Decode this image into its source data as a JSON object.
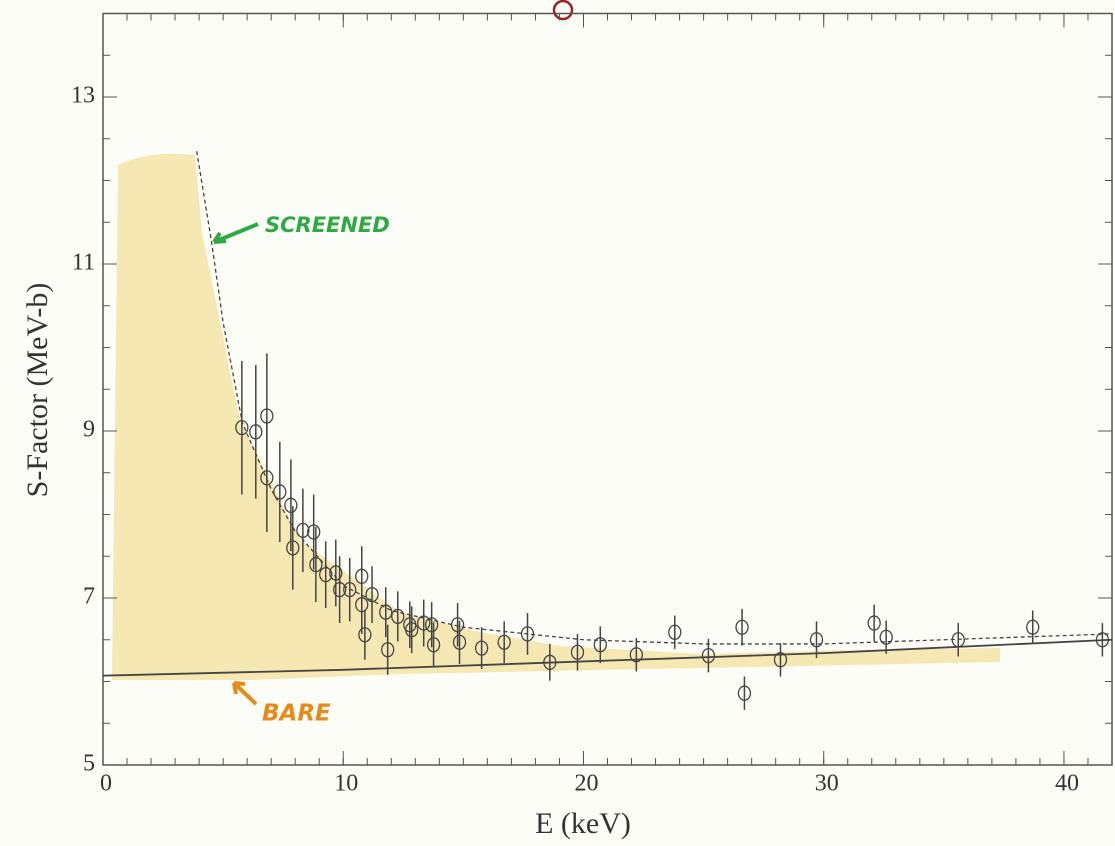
{
  "chart_data": {
    "type": "scatter",
    "x_label": "E (keV)",
    "y_label": "S-Factor (MeV-b)",
    "xlim": [
      0,
      42
    ],
    "ylim": [
      5,
      14
    ],
    "xticks": [
      0,
      10,
      20,
      30,
      40
    ],
    "yticks": [
      5,
      7,
      9,
      11,
      13
    ],
    "marker_color": "#444444",
    "points": {
      "x": [
        5.78,
        6.36,
        6.82,
        6.82,
        7.36,
        7.82,
        7.9,
        8.32,
        8.77,
        8.86,
        9.27,
        9.69,
        9.85,
        10.27,
        10.77,
        10.77,
        10.9,
        11.2,
        11.77,
        11.85,
        12.27,
        12.77,
        12.85,
        13.35,
        13.68,
        13.76,
        14.76,
        14.84,
        15.76,
        16.7,
        17.67,
        18.6,
        19.75,
        20.7,
        22.2,
        23.8,
        25.2,
        26.6,
        26.7,
        28.2,
        29.7,
        32.1,
        32.6,
        35.6,
        38.7,
        41.6
      ],
      "y": [
        9.04,
        8.99,
        9.18,
        8.44,
        8.27,
        8.11,
        7.6,
        7.81,
        7.79,
        7.4,
        7.28,
        7.3,
        7.1,
        7.1,
        7.26,
        6.92,
        6.56,
        7.04,
        6.83,
        6.38,
        6.78,
        6.68,
        6.62,
        6.7,
        6.68,
        6.44,
        6.68,
        6.47,
        6.4,
        6.47,
        6.57,
        6.23,
        6.35,
        6.44,
        6.32,
        6.59,
        6.31,
        6.65,
        5.86,
        6.26,
        6.5,
        6.7,
        6.53,
        6.5,
        6.65,
        6.5
      ],
      "errors": [
        0.8,
        0.8,
        0.75,
        0.65,
        0.6,
        0.55,
        0.5,
        0.5,
        0.45,
        0.45,
        0.4,
        0.4,
        0.4,
        0.38,
        0.36,
        0.35,
        0.3,
        0.34,
        0.3,
        0.3,
        0.3,
        0.28,
        0.28,
        0.28,
        0.27,
        0.27,
        0.26,
        0.26,
        0.25,
        0.25,
        0.25,
        0.22,
        0.22,
        0.22,
        0.2,
        0.2,
        0.2,
        0.22,
        0.2,
        0.2,
        0.22,
        0.22,
        0.2,
        0.2,
        0.2,
        0.2
      ]
    },
    "curves": [
      {
        "style": "dashed",
        "x": [
          3.9,
          4.5,
          5,
          5.8,
          7,
          8,
          10,
          12,
          15,
          20,
          25,
          30,
          35,
          42
        ],
        "y": [
          12.35,
          11.3,
          10.3,
          9.1,
          8.3,
          7.8,
          7.15,
          6.85,
          6.65,
          6.5,
          6.45,
          6.45,
          6.5,
          6.57
        ]
      },
      {
        "style": "solid",
        "x": [
          0,
          10,
          20,
          30,
          42
        ],
        "y": [
          6.07,
          6.14,
          6.24,
          6.34,
          6.5
        ]
      }
    ],
    "annotations": [
      {
        "text": "SCREENED",
        "color": "#2eaa44"
      },
      {
        "text": "BARE",
        "color": "#e88a1a"
      }
    ]
  }
}
